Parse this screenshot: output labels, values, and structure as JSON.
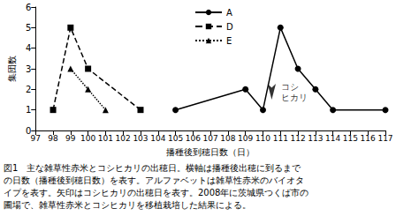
{
  "chart_data": {
    "type": "line",
    "x_label": "播種後到穂日数（日）",
    "y_label": "集団数",
    "xlim": [
      97,
      117
    ],
    "xticks": [
      97,
      98,
      99,
      100,
      101,
      102,
      103,
      104,
      105,
      106,
      107,
      108,
      109,
      110,
      111,
      112,
      113,
      114,
      115,
      116,
      117
    ],
    "ylim": [
      0,
      6
    ],
    "yticks": [
      0,
      1,
      2,
      3,
      4,
      5,
      6
    ],
    "grid": false,
    "legend": "top",
    "series": [
      {
        "name": "A",
        "color": "#000000",
        "marker": "circle",
        "line_style": "solid",
        "x": [
          105,
          109,
          110,
          111,
          112,
          113,
          114,
          117
        ],
        "values": [
          1,
          2,
          1,
          5,
          3,
          2,
          1,
          1
        ]
      },
      {
        "name": "D",
        "color": "#000000",
        "marker": "square",
        "line_style": "dashed",
        "x": [
          98,
          99,
          100,
          103
        ],
        "values": [
          1,
          5,
          3,
          1
        ]
      },
      {
        "name": "E",
        "color": "#000000",
        "marker": "triangle",
        "line_style": "dotted",
        "x": [
          99,
          100,
          101
        ],
        "values": [
          3,
          2,
          1
        ]
      }
    ],
    "annotation": {
      "text": "コシ\nヒカリ",
      "x": 110.5,
      "y": 1.5
    },
    "caption": [
      "図1　主な雑草性赤米とコシヒカリの出穂日。横軸は播種後出穂に到るまで",
      "の日数（播種後到穂日数）を表す。アルファベットは雑草性赤米のバイオタ",
      "イプを表す。矢印はコシヒカリの出穂日を表す。2008年に茨城県つくば市の",
      "圃場で、雑草性赤米とコシヒカリを移植栽培した結果による。"
    ]
  }
}
